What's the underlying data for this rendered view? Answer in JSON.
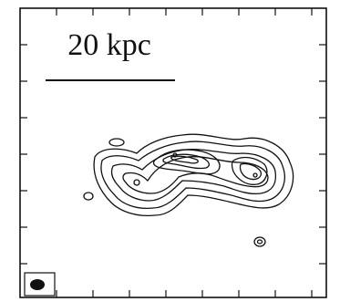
{
  "scale_label": "20 kpc"
}
